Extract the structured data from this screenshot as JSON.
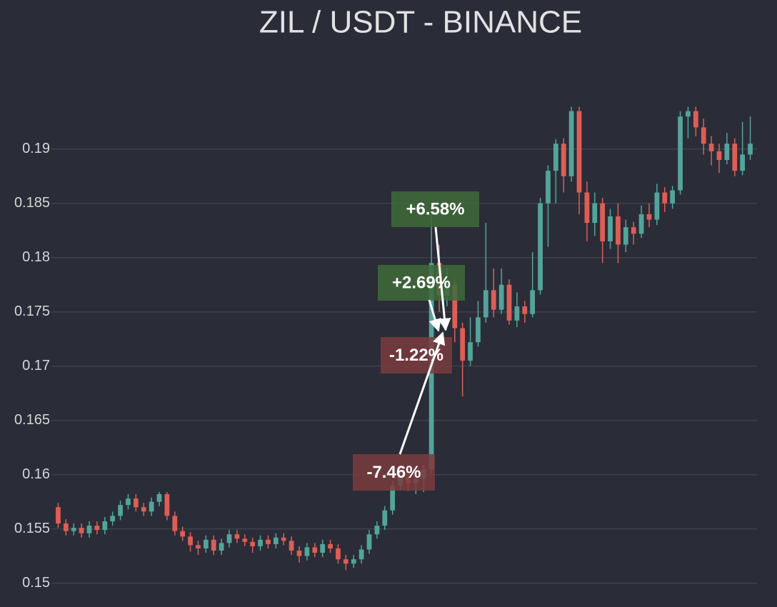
{
  "chart_data": {
    "type": "candlestick",
    "title": "ZIL / USDT - BINANCE",
    "up_color": "#53a49a",
    "down_color": "#dd5e56",
    "grid": true,
    "ylim": [
      0.148,
      0.194
    ],
    "yticks": [
      0.15,
      0.155,
      0.16,
      0.165,
      0.17,
      0.175,
      0.18,
      0.185,
      0.19
    ],
    "open": [
      0.157,
      0.1555,
      0.1548,
      0.1551,
      0.1546,
      0.1553,
      0.1549,
      0.1557,
      0.1562,
      0.1572,
      0.1578,
      0.157,
      0.1566,
      0.1575,
      0.1582,
      0.1562,
      0.1548,
      0.1543,
      0.1535,
      0.1532,
      0.154,
      0.153,
      0.1537,
      0.1545,
      0.1541,
      0.1538,
      0.1534,
      0.154,
      0.1536,
      0.1542,
      0.1539,
      0.153,
      0.1525,
      0.1533,
      0.1528,
      0.1536,
      0.1532,
      0.1522,
      0.1518,
      0.1522,
      0.1531,
      0.1545,
      0.1553,
      0.1567,
      0.159,
      0.1598,
      0.1592,
      0.1596,
      0.1605,
      0.1795,
      0.1765,
      0.1775,
      0.1735,
      0.1705,
      0.1722,
      0.1745,
      0.177,
      0.1752,
      0.1775,
      0.1742,
      0.1755,
      0.1748,
      0.177,
      0.185,
      0.188,
      0.1905,
      0.1875,
      0.1935,
      0.186,
      0.1832,
      0.185,
      0.1815,
      0.1838,
      0.1812,
      0.1828,
      0.1822,
      0.184,
      0.1835,
      0.186,
      0.185,
      0.1862,
      0.193,
      0.1935,
      0.192,
      0.1905,
      0.1898,
      0.189,
      0.1905,
      0.188,
      0.1895
    ],
    "high": [
      0.1574,
      0.1559,
      0.1555,
      0.1555,
      0.1557,
      0.1557,
      0.1561,
      0.1566,
      0.1576,
      0.1582,
      0.1582,
      0.1574,
      0.1579,
      0.1584,
      0.1584,
      0.1566,
      0.1552,
      0.1547,
      0.1539,
      0.1544,
      0.1544,
      0.1541,
      0.1549,
      0.1549,
      0.1545,
      0.1542,
      0.1544,
      0.1544,
      0.1546,
      0.1546,
      0.1543,
      0.1534,
      0.1537,
      0.1537,
      0.154,
      0.154,
      0.1536,
      0.1526,
      0.1526,
      0.1535,
      0.1549,
      0.1557,
      0.1571,
      0.1594,
      0.1608,
      0.1608,
      0.1604,
      0.1609,
      0.184,
      0.1812,
      0.179,
      0.178,
      0.174,
      0.1745,
      0.176,
      0.1832,
      0.179,
      0.179,
      0.178,
      0.1768,
      0.176,
      0.1805,
      0.1855,
      0.1885,
      0.1909,
      0.191,
      0.1939,
      0.1939,
      0.187,
      0.186,
      0.1855,
      0.1845,
      0.185,
      0.1835,
      0.1833,
      0.1848,
      0.185,
      0.1868,
      0.1865,
      0.1866,
      0.1935,
      0.1939,
      0.1939,
      0.1928,
      0.1912,
      0.1905,
      0.1915,
      0.191,
      0.1925,
      0.193
    ],
    "low": [
      0.1551,
      0.1544,
      0.1544,
      0.1542,
      0.1542,
      0.1545,
      0.1545,
      0.1553,
      0.1558,
      0.1568,
      0.1566,
      0.1562,
      0.1562,
      0.1571,
      0.1558,
      0.1544,
      0.1539,
      0.1529,
      0.1526,
      0.1528,
      0.1526,
      0.1526,
      0.1533,
      0.1537,
      0.1534,
      0.1528,
      0.153,
      0.1532,
      0.1532,
      0.1535,
      0.1526,
      0.1519,
      0.1521,
      0.1524,
      0.1524,
      0.1528,
      0.1518,
      0.1512,
      0.1514,
      0.1518,
      0.1527,
      0.1541,
      0.1549,
      0.1563,
      0.1586,
      0.1585,
      0.1582,
      0.1584,
      0.1601,
      0.175,
      0.1755,
      0.1722,
      0.1672,
      0.17,
      0.1718,
      0.174,
      0.1745,
      0.1748,
      0.1738,
      0.1736,
      0.174,
      0.1745,
      0.1766,
      0.181,
      0.185,
      0.186,
      0.187,
      0.184,
      0.1815,
      0.182,
      0.1795,
      0.1808,
      0.1795,
      0.1805,
      0.1812,
      0.1818,
      0.1828,
      0.183,
      0.1842,
      0.1845,
      0.1858,
      0.191,
      0.1912,
      0.1895,
      0.1885,
      0.1878,
      0.1886,
      0.1875,
      0.1876,
      0.189
    ],
    "close": [
      0.1555,
      0.1548,
      0.1551,
      0.1546,
      0.1553,
      0.1549,
      0.1557,
      0.1562,
      0.1572,
      0.1578,
      0.157,
      0.1566,
      0.1575,
      0.1582,
      0.1562,
      0.1548,
      0.1543,
      0.1535,
      0.1532,
      0.154,
      0.153,
      0.1537,
      0.1545,
      0.1541,
      0.1538,
      0.1534,
      0.154,
      0.1536,
      0.1542,
      0.1539,
      0.153,
      0.1525,
      0.1533,
      0.1528,
      0.1536,
      0.1532,
      0.1522,
      0.1518,
      0.1522,
      0.1531,
      0.1545,
      0.1553,
      0.1567,
      0.159,
      0.1598,
      0.1592,
      0.1596,
      0.1605,
      0.1795,
      0.1765,
      0.1775,
      0.1735,
      0.1705,
      0.1722,
      0.1745,
      0.177,
      0.1752,
      0.1775,
      0.1742,
      0.1755,
      0.1748,
      0.177,
      0.185,
      0.188,
      0.1905,
      0.1875,
      0.1935,
      0.186,
      0.1832,
      0.185,
      0.1815,
      0.1838,
      0.1812,
      0.1828,
      0.1822,
      0.184,
      0.1835,
      0.186,
      0.185,
      0.1862,
      0.193,
      0.1935,
      0.192,
      0.1905,
      0.1898,
      0.189,
      0.1905,
      0.188,
      0.1895,
      0.1905
    ],
    "annotations": [
      {
        "text": "+6.58%",
        "color": "#3f6b3a"
      },
      {
        "text": "+2.69%",
        "color": "#3f6b3a"
      },
      {
        "text": "-1.22%",
        "color": "#7a3c3e"
      },
      {
        "text": "-7.46%",
        "color": "#7a3c3e"
      }
    ]
  }
}
